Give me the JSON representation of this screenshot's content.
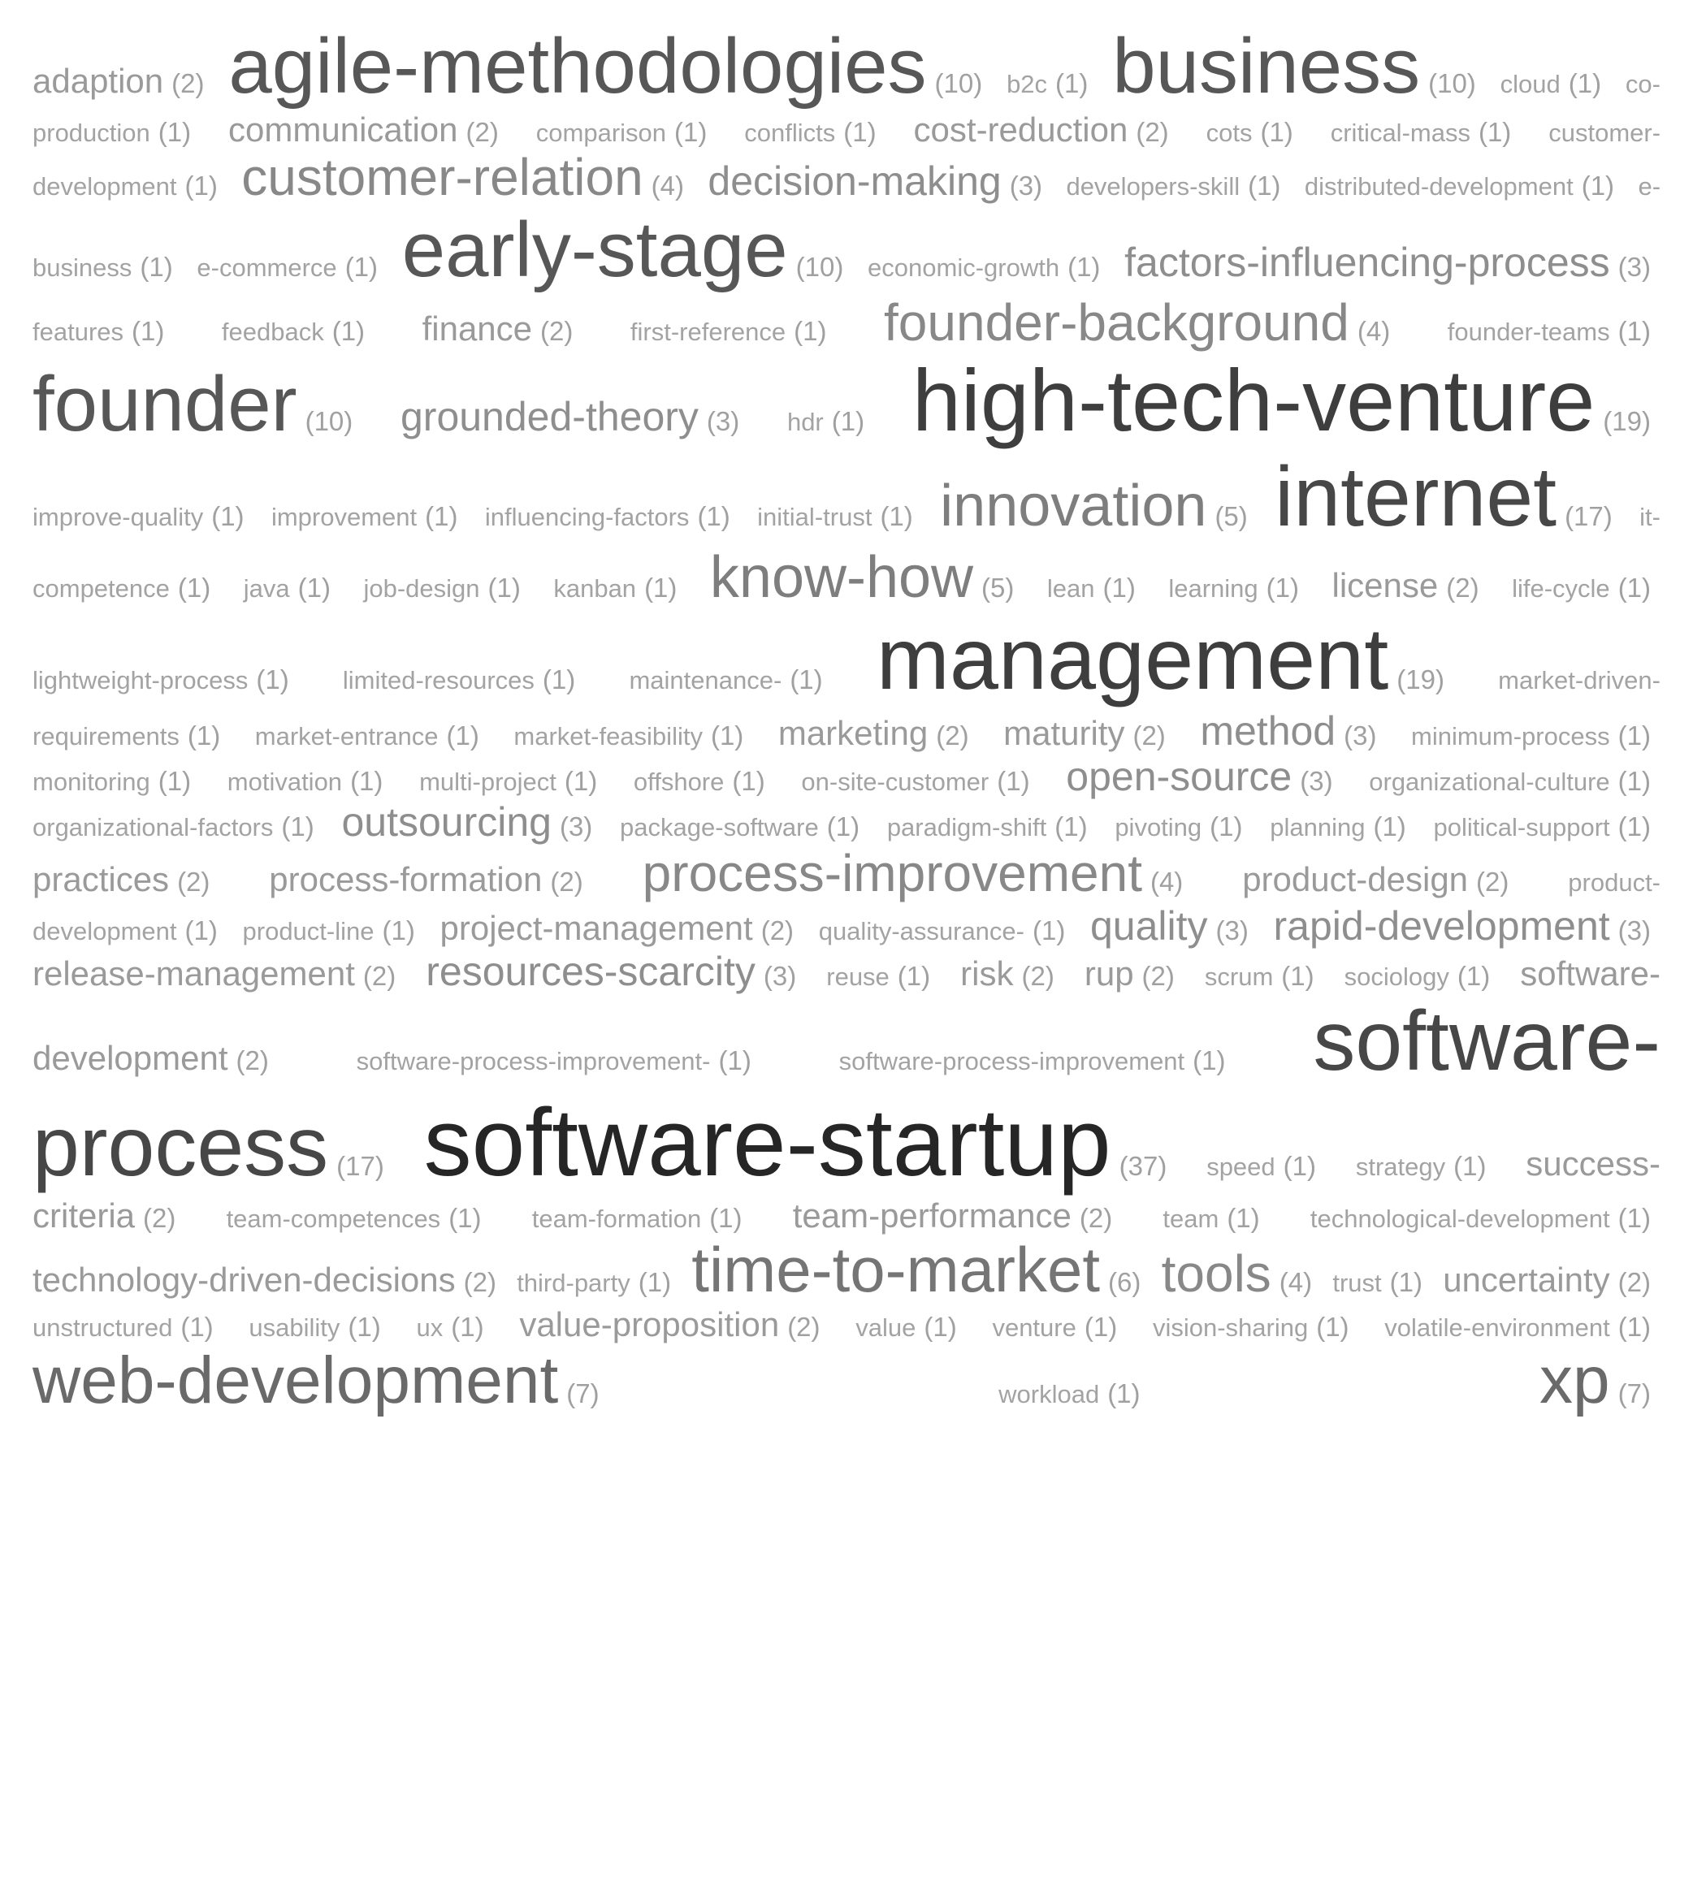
{
  "tags": [
    {
      "word": "adaption",
      "count": "(2)",
      "level": 2
    },
    {
      "word": "agile-methodologies",
      "count": "(10)",
      "level": 10
    },
    {
      "word": "b2c",
      "count": "(1)",
      "level": 1
    },
    {
      "word": "business",
      "count": "(10)",
      "level": 10
    },
    {
      "word": "cloud",
      "count": "(1)",
      "level": 1
    },
    {
      "word": "co-production",
      "count": "(1)",
      "level": 1
    },
    {
      "word": "communication",
      "count": "(2)",
      "level": 2
    },
    {
      "word": "comparison",
      "count": "(1)",
      "level": 1
    },
    {
      "word": "conflicts",
      "count": "(1)",
      "level": 1
    },
    {
      "word": "cost-reduction",
      "count": "(2)",
      "level": 2
    },
    {
      "word": "cots",
      "count": "(1)",
      "level": 1
    },
    {
      "word": "critical-mass",
      "count": "(1)",
      "level": 1
    },
    {
      "word": "customer-development",
      "count": "(1)",
      "level": 1
    },
    {
      "word": "customer-relation",
      "count": "(4)",
      "level": 4
    },
    {
      "word": "decision-making",
      "count": "(3)",
      "level": 3
    },
    {
      "word": "developers-skill",
      "count": "(1)",
      "level": 1
    },
    {
      "word": "distributed-development",
      "count": "(1)",
      "level": 1
    },
    {
      "word": "e-business",
      "count": "(1)",
      "level": 1
    },
    {
      "word": "e-commerce",
      "count": "(1)",
      "level": 1
    },
    {
      "word": "early-stage",
      "count": "(10)",
      "level": 10
    },
    {
      "word": "economic-growth",
      "count": "(1)",
      "level": 1
    },
    {
      "word": "factors-influencing-process",
      "count": "(3)",
      "level": 3
    },
    {
      "word": "features",
      "count": "(1)",
      "level": 1
    },
    {
      "word": "feedback",
      "count": "(1)",
      "level": 1
    },
    {
      "word": "finance",
      "count": "(2)",
      "level": 2
    },
    {
      "word": "first-reference",
      "count": "(1)",
      "level": 1
    },
    {
      "word": "founder-background",
      "count": "(4)",
      "level": 4
    },
    {
      "word": "founder-teams",
      "count": "(1)",
      "level": 1
    },
    {
      "word": "founder",
      "count": "(10)",
      "level": 10
    },
    {
      "word": "grounded-theory",
      "count": "(3)",
      "level": 3
    },
    {
      "word": "hdr",
      "count": "(1)",
      "level": 1
    },
    {
      "word": "high-tech-venture",
      "count": "(19)",
      "level": 19
    },
    {
      "word": "improve-quality",
      "count": "(1)",
      "level": 1
    },
    {
      "word": "improvement",
      "count": "(1)",
      "level": 1
    },
    {
      "word": "influencing-factors",
      "count": "(1)",
      "level": 1
    },
    {
      "word": "initial-trust",
      "count": "(1)",
      "level": 1
    },
    {
      "word": "innovation",
      "count": "(5)",
      "level": 5
    },
    {
      "word": "internet",
      "count": "(17)",
      "level": 17
    },
    {
      "word": "it-competence",
      "count": "(1)",
      "level": 1
    },
    {
      "word": "java",
      "count": "(1)",
      "level": 1
    },
    {
      "word": "job-design",
      "count": "(1)",
      "level": 1
    },
    {
      "word": "kanban",
      "count": "(1)",
      "level": 1
    },
    {
      "word": "know-how",
      "count": "(5)",
      "level": 5
    },
    {
      "word": "lean",
      "count": "(1)",
      "level": 1
    },
    {
      "word": "learning",
      "count": "(1)",
      "level": 1
    },
    {
      "word": "license",
      "count": "(2)",
      "level": 2
    },
    {
      "word": "life-cycle",
      "count": "(1)",
      "level": 1
    },
    {
      "word": "lightweight-process",
      "count": "(1)",
      "level": 1
    },
    {
      "word": "limited-resources",
      "count": "(1)",
      "level": 1
    },
    {
      "word": "maintenance-",
      "count": "(1)",
      "level": 1
    },
    {
      "word": "management",
      "count": "(19)",
      "level": 19
    },
    {
      "word": "market-driven-requirements",
      "count": "(1)",
      "level": 1
    },
    {
      "word": "market-entrance",
      "count": "(1)",
      "level": 1
    },
    {
      "word": "market-feasibility",
      "count": "(1)",
      "level": 1
    },
    {
      "word": "marketing",
      "count": "(2)",
      "level": 2
    },
    {
      "word": "maturity",
      "count": "(2)",
      "level": 2
    },
    {
      "word": "method",
      "count": "(3)",
      "level": 3
    },
    {
      "word": "minimum-process",
      "count": "(1)",
      "level": 1
    },
    {
      "word": "monitoring",
      "count": "(1)",
      "level": 1
    },
    {
      "word": "motivation",
      "count": "(1)",
      "level": 1
    },
    {
      "word": "multi-project",
      "count": "(1)",
      "level": 1
    },
    {
      "word": "offshore",
      "count": "(1)",
      "level": 1
    },
    {
      "word": "on-site-customer",
      "count": "(1)",
      "level": 1
    },
    {
      "word": "open-source",
      "count": "(3)",
      "level": 3
    },
    {
      "word": "organizational-culture",
      "count": "(1)",
      "level": 1
    },
    {
      "word": "organizational-factors",
      "count": "(1)",
      "level": 1
    },
    {
      "word": "outsourcing",
      "count": "(3)",
      "level": 3
    },
    {
      "word": "package-software",
      "count": "(1)",
      "level": 1
    },
    {
      "word": "paradigm-shift",
      "count": "(1)",
      "level": 1
    },
    {
      "word": "pivoting",
      "count": "(1)",
      "level": 1
    },
    {
      "word": "planning",
      "count": "(1)",
      "level": 1
    },
    {
      "word": "political-support",
      "count": "(1)",
      "level": 1
    },
    {
      "word": "practices",
      "count": "(2)",
      "level": 2
    },
    {
      "word": "process-formation",
      "count": "(2)",
      "level": 2
    },
    {
      "word": "process-improvement",
      "count": "(4)",
      "level": 4
    },
    {
      "word": "product-design",
      "count": "(2)",
      "level": 2
    },
    {
      "word": "product-development",
      "count": "(1)",
      "level": 1
    },
    {
      "word": "product-line",
      "count": "(1)",
      "level": 1
    },
    {
      "word": "project-management",
      "count": "(2)",
      "level": 2
    },
    {
      "word": "quality-assurance-",
      "count": "(1)",
      "level": 1
    },
    {
      "word": "quality",
      "count": "(3)",
      "level": 3
    },
    {
      "word": "rapid-development",
      "count": "(3)",
      "level": 3
    },
    {
      "word": "release-management",
      "count": "(2)",
      "level": 2
    },
    {
      "word": "resources-scarcity",
      "count": "(3)",
      "level": 3
    },
    {
      "word": "reuse",
      "count": "(1)",
      "level": 1
    },
    {
      "word": "risk",
      "count": "(2)",
      "level": 2
    },
    {
      "word": "rup",
      "count": "(2)",
      "level": 2
    },
    {
      "word": "scrum",
      "count": "(1)",
      "level": 1
    },
    {
      "word": "sociology",
      "count": "(1)",
      "level": 1
    },
    {
      "word": "software-development",
      "count": "(2)",
      "level": 2
    },
    {
      "word": "software-process-improvement-",
      "count": "(1)",
      "level": 1
    },
    {
      "word": "software-process-improvement",
      "count": "(1)",
      "level": 1
    },
    {
      "word": "software-process",
      "count": "(17)",
      "level": 17
    },
    {
      "word": "software-startup",
      "count": "(37)",
      "level": 37
    },
    {
      "word": "speed",
      "count": "(1)",
      "level": 1
    },
    {
      "word": "strategy",
      "count": "(1)",
      "level": 1
    },
    {
      "word": "success-criteria",
      "count": "(2)",
      "level": 2
    },
    {
      "word": "team-competences",
      "count": "(1)",
      "level": 1
    },
    {
      "word": "team-formation",
      "count": "(1)",
      "level": 1
    },
    {
      "word": "team-performance",
      "count": "(2)",
      "level": 2
    },
    {
      "word": "team",
      "count": "(1)",
      "level": 1
    },
    {
      "word": "technological-development",
      "count": "(1)",
      "level": 1
    },
    {
      "word": "technology-driven-decisions",
      "count": "(2)",
      "level": 2
    },
    {
      "word": "third-party",
      "count": "(1)",
      "level": 1
    },
    {
      "word": "time-to-market",
      "count": "(6)",
      "level": 6
    },
    {
      "word": "tools",
      "count": "(4)",
      "level": 4
    },
    {
      "word": "trust",
      "count": "(1)",
      "level": 1
    },
    {
      "word": "uncertainty",
      "count": "(2)",
      "level": 2
    },
    {
      "word": "unstructured",
      "count": "(1)",
      "level": 1
    },
    {
      "word": "usability",
      "count": "(1)",
      "level": 1
    },
    {
      "word": "ux",
      "count": "(1)",
      "level": 1
    },
    {
      "word": "value-proposition",
      "count": "(2)",
      "level": 2
    },
    {
      "word": "value",
      "count": "(1)",
      "level": 1
    },
    {
      "word": "venture",
      "count": "(1)",
      "level": 1
    },
    {
      "word": "vision-sharing",
      "count": "(1)",
      "level": 1
    },
    {
      "word": "volatile-environment",
      "count": "(1)",
      "level": 1
    },
    {
      "word": "web-development",
      "count": "(7)",
      "level": 7
    },
    {
      "word": "workload",
      "count": "(1)",
      "level": 1
    },
    {
      "word": "xp",
      "count": "(7)",
      "level": 7
    }
  ],
  "colors": {
    "level_1": "#a3a3a3",
    "level_2": "#9a9a9a",
    "level_3": "#8e8e8e",
    "level_4": "#888888",
    "level_5": "#7e7e7e",
    "level_6": "#757575",
    "level_7": "#6a6a6a",
    "level_10": "#575757",
    "level_17": "#474747",
    "level_19": "#3e3e3e",
    "level_37": "#262626",
    "count": "#a0a0a0"
  }
}
